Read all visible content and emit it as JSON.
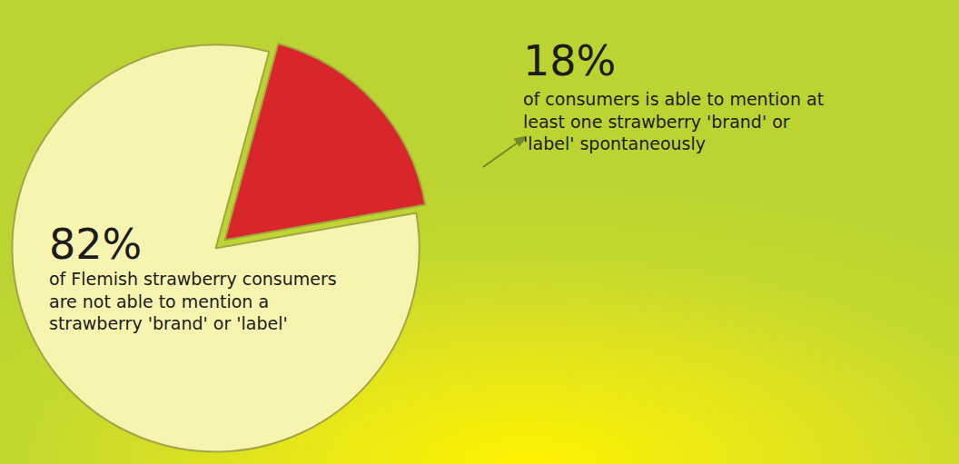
{
  "chart_data": {
    "type": "pie",
    "categories": [
      "of Flemish strawberry consumers are not able to mention a strawberry 'brand' or 'label'",
      "of consumers is able to mention at least one strawberry 'brand' or 'label' spontaneously"
    ],
    "values": [
      82,
      18
    ],
    "value_labels": [
      "82%",
      "18%"
    ],
    "colors": [
      "#f7f4b0",
      "#d8262a"
    ],
    "data_labels": true
  }
}
